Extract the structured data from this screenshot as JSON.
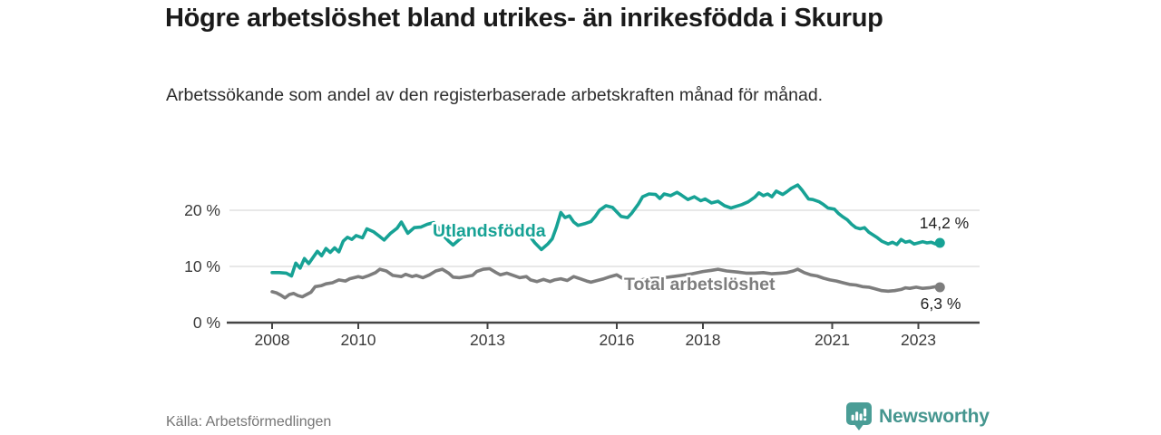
{
  "header": {
    "title": "Högre arbetslöshet bland utrikes- än inrikesfödda i Skurup",
    "subtitle": "Arbetssökande som andel av den registerbaserade arbetskraften månad för månad."
  },
  "footer": {
    "source": "Källa: Arbetsförmedlingen",
    "brand": "Newsworthy"
  },
  "colors": {
    "teal_line": "#17a295",
    "gray_line": "#7d7d7d",
    "grid": "#d9d9d9",
    "axis": "#454545",
    "tick_text": "#3a3a3a",
    "value_text": "#1f1f1f",
    "brand_teal": "#45968f"
  },
  "chart_data": {
    "type": "line",
    "title": "Högre arbetslöshet bland utrikes- än inrikesfödda i Skurup",
    "xlabel": "",
    "ylabel": "",
    "y_unit": "%",
    "grid": "horizontal",
    "legend_position": "inline-labels",
    "x_axis": {
      "range": [
        2006.9,
        2024.4
      ],
      "ticks": [
        {
          "v": 2008,
          "label": "2008"
        },
        {
          "v": 2010,
          "label": "2010"
        },
        {
          "v": 2013,
          "label": "2013"
        },
        {
          "v": 2016,
          "label": "2016"
        },
        {
          "v": 2018,
          "label": "2018"
        },
        {
          "v": 2021,
          "label": "2021"
        },
        {
          "v": 2023,
          "label": "2023"
        }
      ]
    },
    "y_axis": {
      "range": [
        0,
        26.5
      ],
      "ticks": [
        {
          "v": 0,
          "label": "0 %"
        },
        {
          "v": 10,
          "label": "10 %"
        },
        {
          "v": 20,
          "label": "20 %"
        }
      ]
    },
    "series": [
      {
        "name": "Utlandsfödda",
        "color_key": "teal_line",
        "end_label": "14,2 %",
        "points": [
          [
            2008.0,
            8.9
          ],
          [
            2008.17,
            8.9
          ],
          [
            2008.33,
            8.8
          ],
          [
            2008.45,
            8.3
          ],
          [
            2008.55,
            10.6
          ],
          [
            2008.65,
            9.7
          ],
          [
            2008.75,
            11.4
          ],
          [
            2008.85,
            10.5
          ],
          [
            2008.95,
            11.6
          ],
          [
            2009.05,
            12.7
          ],
          [
            2009.15,
            11.9
          ],
          [
            2009.25,
            13.2
          ],
          [
            2009.35,
            12.5
          ],
          [
            2009.45,
            13.3
          ],
          [
            2009.55,
            12.6
          ],
          [
            2009.65,
            14.5
          ],
          [
            2009.75,
            15.2
          ],
          [
            2009.85,
            14.8
          ],
          [
            2009.95,
            15.5
          ],
          [
            2010.1,
            15.1
          ],
          [
            2010.2,
            16.7
          ],
          [
            2010.35,
            16.2
          ],
          [
            2010.5,
            15.3
          ],
          [
            2010.6,
            14.7
          ],
          [
            2010.75,
            15.9
          ],
          [
            2010.9,
            16.8
          ],
          [
            2011.0,
            17.9
          ],
          [
            2011.15,
            15.9
          ],
          [
            2011.3,
            16.9
          ],
          [
            2011.45,
            17.0
          ],
          [
            2011.6,
            17.5
          ],
          [
            2011.75,
            17.8
          ],
          [
            2011.9,
            16.5
          ],
          [
            2012.0,
            15.3
          ],
          [
            2012.1,
            14.5
          ],
          [
            2012.2,
            13.8
          ],
          [
            2012.35,
            14.8
          ],
          [
            2012.5,
            15.8
          ],
          [
            2012.65,
            16.5
          ],
          [
            2012.8,
            16.9
          ],
          [
            2012.95,
            16.4
          ],
          [
            2013.1,
            16.0
          ],
          [
            2013.25,
            16.5
          ],
          [
            2013.4,
            16.9
          ],
          [
            2013.55,
            16.6
          ],
          [
            2013.7,
            16.1
          ],
          [
            2013.85,
            15.7
          ],
          [
            2014.0,
            15.2
          ],
          [
            2014.1,
            14.2
          ],
          [
            2014.25,
            13.0
          ],
          [
            2014.4,
            14.0
          ],
          [
            2014.5,
            14.9
          ],
          [
            2014.6,
            17.0
          ],
          [
            2014.7,
            19.6
          ],
          [
            2014.8,
            18.7
          ],
          [
            2014.9,
            19.0
          ],
          [
            2015.0,
            17.9
          ],
          [
            2015.1,
            17.3
          ],
          [
            2015.25,
            17.6
          ],
          [
            2015.4,
            18.0
          ],
          [
            2015.5,
            18.9
          ],
          [
            2015.6,
            20.0
          ],
          [
            2015.75,
            20.8
          ],
          [
            2015.9,
            20.5
          ],
          [
            2016.0,
            19.7
          ],
          [
            2016.1,
            18.9
          ],
          [
            2016.25,
            18.7
          ],
          [
            2016.35,
            19.5
          ],
          [
            2016.5,
            21.1
          ],
          [
            2016.6,
            22.4
          ],
          [
            2016.75,
            22.9
          ],
          [
            2016.9,
            22.8
          ],
          [
            2017.0,
            22.1
          ],
          [
            2017.1,
            22.9
          ],
          [
            2017.25,
            22.6
          ],
          [
            2017.4,
            23.2
          ],
          [
            2017.5,
            22.7
          ],
          [
            2017.65,
            21.9
          ],
          [
            2017.8,
            22.4
          ],
          [
            2017.95,
            21.7
          ],
          [
            2018.05,
            22.0
          ],
          [
            2018.2,
            21.3
          ],
          [
            2018.35,
            21.6
          ],
          [
            2018.5,
            20.8
          ],
          [
            2018.65,
            20.4
          ],
          [
            2018.9,
            21.0
          ],
          [
            2019.05,
            21.5
          ],
          [
            2019.2,
            22.3
          ],
          [
            2019.3,
            23.1
          ],
          [
            2019.4,
            22.6
          ],
          [
            2019.5,
            22.9
          ],
          [
            2019.6,
            22.4
          ],
          [
            2019.7,
            23.4
          ],
          [
            2019.85,
            22.8
          ],
          [
            2019.95,
            23.3
          ],
          [
            2020.05,
            23.9
          ],
          [
            2020.2,
            24.5
          ],
          [
            2020.3,
            23.6
          ],
          [
            2020.45,
            22.0
          ],
          [
            2020.55,
            21.9
          ],
          [
            2020.7,
            21.5
          ],
          [
            2020.8,
            21.0
          ],
          [
            2020.9,
            20.4
          ],
          [
            2021.05,
            20.2
          ],
          [
            2021.15,
            19.4
          ],
          [
            2021.25,
            18.8
          ],
          [
            2021.35,
            18.3
          ],
          [
            2021.45,
            17.5
          ],
          [
            2021.55,
            16.9
          ],
          [
            2021.65,
            16.7
          ],
          [
            2021.75,
            16.9
          ],
          [
            2021.85,
            16.1
          ],
          [
            2021.95,
            15.6
          ],
          [
            2022.05,
            15.1
          ],
          [
            2022.15,
            14.5
          ],
          [
            2022.3,
            14.0
          ],
          [
            2022.4,
            14.3
          ],
          [
            2022.5,
            13.9
          ],
          [
            2022.6,
            14.8
          ],
          [
            2022.7,
            14.3
          ],
          [
            2022.8,
            14.5
          ],
          [
            2022.9,
            14.0
          ],
          [
            2023.0,
            14.2
          ],
          [
            2023.1,
            14.4
          ],
          [
            2023.2,
            14.2
          ],
          [
            2023.3,
            14.3
          ],
          [
            2023.4,
            14.0
          ],
          [
            2023.5,
            14.2
          ]
        ]
      },
      {
        "name": "Total arbetslöshet",
        "color_key": "gray_line",
        "end_label": "6,3 %",
        "points": [
          [
            2008.0,
            5.5
          ],
          [
            2008.1,
            5.3
          ],
          [
            2008.2,
            4.9
          ],
          [
            2008.3,
            4.4
          ],
          [
            2008.4,
            5.0
          ],
          [
            2008.5,
            5.2
          ],
          [
            2008.6,
            4.8
          ],
          [
            2008.7,
            4.6
          ],
          [
            2008.8,
            5.0
          ],
          [
            2008.9,
            5.4
          ],
          [
            2009.0,
            6.4
          ],
          [
            2009.15,
            6.6
          ],
          [
            2009.25,
            6.9
          ],
          [
            2009.4,
            7.1
          ],
          [
            2009.55,
            7.6
          ],
          [
            2009.7,
            7.4
          ],
          [
            2009.8,
            7.8
          ],
          [
            2010.0,
            8.2
          ],
          [
            2010.1,
            8.0
          ],
          [
            2010.25,
            8.4
          ],
          [
            2010.4,
            8.9
          ],
          [
            2010.5,
            9.5
          ],
          [
            2010.65,
            9.2
          ],
          [
            2010.8,
            8.4
          ],
          [
            2011.0,
            8.2
          ],
          [
            2011.1,
            8.6
          ],
          [
            2011.25,
            8.2
          ],
          [
            2011.35,
            8.4
          ],
          [
            2011.5,
            8.0
          ],
          [
            2011.65,
            8.5
          ],
          [
            2011.8,
            9.2
          ],
          [
            2011.95,
            9.5
          ],
          [
            2012.1,
            8.8
          ],
          [
            2012.2,
            8.1
          ],
          [
            2012.35,
            8.0
          ],
          [
            2012.5,
            8.2
          ],
          [
            2012.65,
            8.4
          ],
          [
            2012.75,
            9.1
          ],
          [
            2012.9,
            9.5
          ],
          [
            2013.05,
            9.6
          ],
          [
            2013.2,
            8.9
          ],
          [
            2013.3,
            8.5
          ],
          [
            2013.45,
            8.8
          ],
          [
            2013.6,
            8.4
          ],
          [
            2013.75,
            8.0
          ],
          [
            2013.9,
            8.2
          ],
          [
            2014.0,
            7.6
          ],
          [
            2014.15,
            7.3
          ],
          [
            2014.3,
            7.7
          ],
          [
            2014.45,
            7.3
          ],
          [
            2014.55,
            7.6
          ],
          [
            2014.7,
            7.8
          ],
          [
            2014.85,
            7.5
          ],
          [
            2015.0,
            8.2
          ],
          [
            2015.15,
            7.8
          ],
          [
            2015.3,
            7.4
          ],
          [
            2015.4,
            7.2
          ],
          [
            2015.55,
            7.5
          ],
          [
            2015.7,
            7.8
          ],
          [
            2015.85,
            8.2
          ],
          [
            2016.0,
            8.5
          ],
          [
            2016.15,
            7.8
          ],
          [
            2016.3,
            7.1
          ],
          [
            2016.5,
            7.5
          ],
          [
            2016.7,
            7.8
          ],
          [
            2016.9,
            7.9
          ],
          [
            2017.1,
            8.0
          ],
          [
            2017.3,
            8.2
          ],
          [
            2017.5,
            8.4
          ],
          [
            2017.75,
            8.7
          ],
          [
            2018.0,
            9.1
          ],
          [
            2018.2,
            9.3
          ],
          [
            2018.35,
            9.5
          ],
          [
            2018.55,
            9.2
          ],
          [
            2018.8,
            9.0
          ],
          [
            2019.0,
            8.8
          ],
          [
            2019.2,
            8.8
          ],
          [
            2019.4,
            8.9
          ],
          [
            2019.6,
            8.7
          ],
          [
            2019.8,
            8.8
          ],
          [
            2019.95,
            8.9
          ],
          [
            2020.1,
            9.2
          ],
          [
            2020.2,
            9.5
          ],
          [
            2020.35,
            8.9
          ],
          [
            2020.5,
            8.5
          ],
          [
            2020.65,
            8.3
          ],
          [
            2020.8,
            7.9
          ],
          [
            2020.95,
            7.6
          ],
          [
            2021.1,
            7.4
          ],
          [
            2021.25,
            7.1
          ],
          [
            2021.4,
            6.8
          ],
          [
            2021.55,
            6.7
          ],
          [
            2021.7,
            6.4
          ],
          [
            2021.85,
            6.3
          ],
          [
            2022.0,
            6.0
          ],
          [
            2022.15,
            5.7
          ],
          [
            2022.3,
            5.6
          ],
          [
            2022.45,
            5.7
          ],
          [
            2022.6,
            5.9
          ],
          [
            2022.7,
            6.2
          ],
          [
            2022.8,
            6.1
          ],
          [
            2022.95,
            6.3
          ],
          [
            2023.1,
            6.1
          ],
          [
            2023.25,
            6.2
          ],
          [
            2023.4,
            6.4
          ],
          [
            2023.5,
            6.3
          ]
        ]
      }
    ]
  }
}
